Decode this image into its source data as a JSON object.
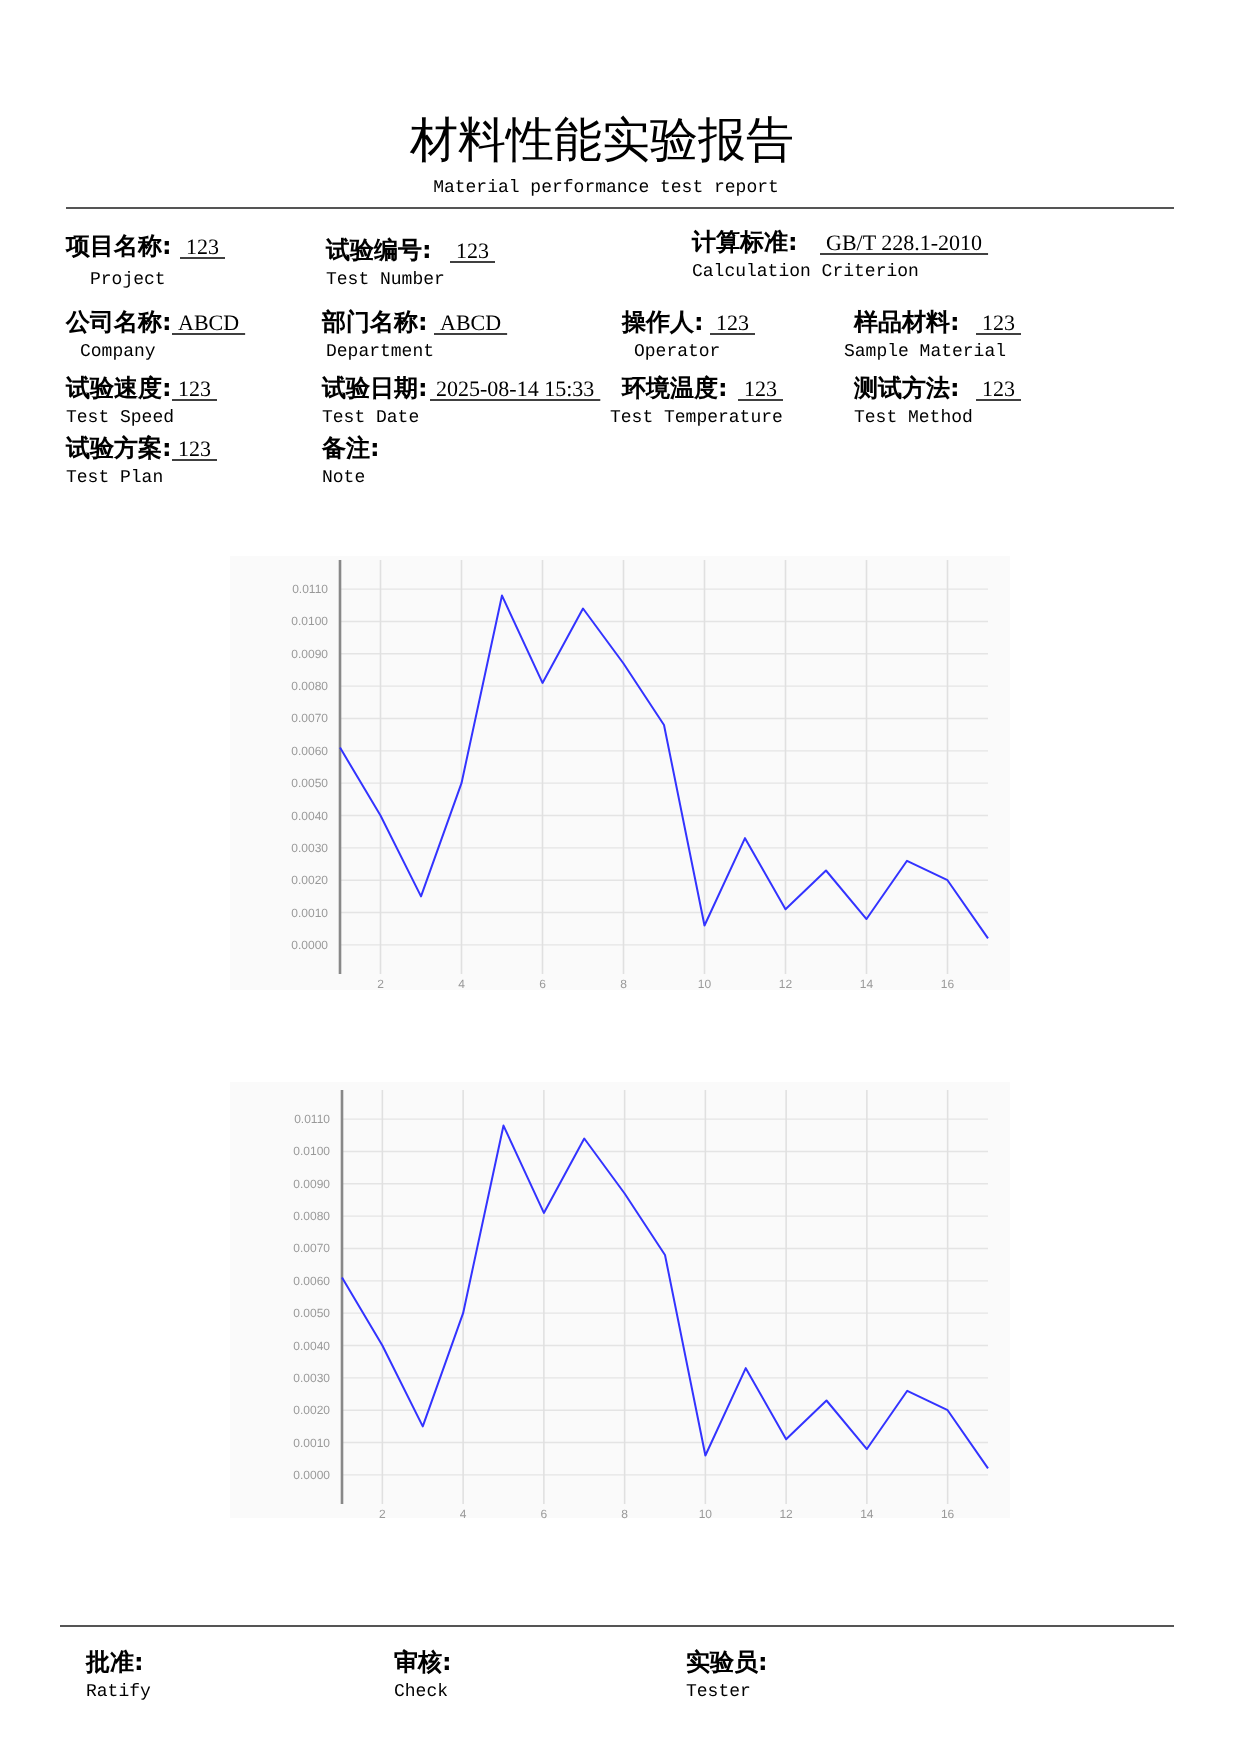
{
  "chart_data": [
    {
      "type": "other",
      "title": "材料性能实验报告",
      "subtitle": "Material performance test report",
      "annotations": [
        "项目名称:",
        "123",
        "Project",
        "试验编号:",
        "123",
        "Test Number",
        "计算标准:",
        "GB/T 228.1-2010",
        "Calculation Criterion",
        "公司名称:",
        "ABCD",
        "Company",
        "部门名称:",
        "ABCD",
        "Department",
        "操作人:",
        "123",
        "Operator",
        "样品材料:",
        "123",
        "Sample Material",
        "试验速度:",
        "123",
        "Test Speed",
        "试验日期:",
        "2025-08-14 15:33",
        "Test Date",
        "环境温度:",
        "123",
        "Test Temperature",
        "测试方法:",
        "123",
        "Test Method",
        "试验方案:",
        "123",
        "Test Plan",
        "备注:",
        "Note"
      ]
    },
    {
      "type": "line",
      "x": [
        1,
        2,
        3,
        4,
        5,
        6,
        7,
        8,
        9,
        10,
        11,
        12,
        13,
        14,
        15,
        16,
        17
      ],
      "series": [
        {
          "color": "#3333ff",
          "values": [
            0.0061,
            0.004,
            0.0015,
            0.005,
            0.0108,
            0.0081,
            0.0104,
            0.0087,
            0.0068,
            0.0006,
            0.0033,
            0.0011,
            0.0023,
            0.0008,
            0.0026,
            0.002,
            0.0002
          ]
        }
      ],
      "xlim": [
        1,
        17
      ],
      "xticks": [
        2,
        4,
        6,
        8,
        10,
        12,
        14,
        16
      ],
      "ylim": [
        -0.0009,
        0.0119
      ],
      "yticks": [
        {
          "value": 0,
          "label": "0.0000"
        },
        {
          "value": 0.001,
          "label": "0.0010"
        },
        {
          "value": 0.002,
          "label": "0.0020"
        },
        {
          "value": 0.003,
          "label": "0.0030"
        },
        {
          "value": 0.004,
          "label": "0.0040"
        },
        {
          "value": 0.005,
          "label": "0.0050"
        },
        {
          "value": 0.006,
          "label": "0.0060"
        },
        {
          "value": 0.007,
          "label": "0.0070"
        },
        {
          "value": 0.008,
          "label": "0.0080"
        },
        {
          "value": 0.009,
          "label": "0.0090"
        },
        {
          "value": 0.01,
          "label": "0.0100"
        },
        {
          "value": 0.011,
          "label": "0.0110"
        }
      ],
      "grid": true,
      "marker": "none",
      "line_style": "solid"
    },
    {
      "type": "line",
      "x": [
        1,
        2,
        3,
        4,
        5,
        6,
        7,
        8,
        9,
        10,
        11,
        12,
        13,
        14,
        15,
        16,
        17
      ],
      "series": [
        {
          "color": "#3333ff",
          "values": [
            0.0061,
            0.004,
            0.0015,
            0.005,
            0.0108,
            0.0081,
            0.0104,
            0.0087,
            0.0068,
            0.0006,
            0.0033,
            0.0011,
            0.0023,
            0.0008,
            0.0026,
            0.002,
            0.0002
          ]
        }
      ],
      "xlim": [
        1,
        17
      ],
      "xticks": [
        2,
        4,
        6,
        8,
        10,
        12,
        14,
        16
      ],
      "ylim": [
        -0.0009,
        0.0119
      ],
      "yticks": [
        {
          "value": 0,
          "label": "0.0000"
        },
        {
          "value": 0.001,
          "label": "0.0010"
        },
        {
          "value": 0.002,
          "label": "0.0020"
        },
        {
          "value": 0.003,
          "label": "0.0030"
        },
        {
          "value": 0.004,
          "label": "0.0040"
        },
        {
          "value": 0.005,
          "label": "0.0050"
        },
        {
          "value": 0.006,
          "label": "0.0060"
        },
        {
          "value": 0.007,
          "label": "0.0070"
        },
        {
          "value": 0.008,
          "label": "0.0080"
        },
        {
          "value": 0.009,
          "label": "0.0090"
        },
        {
          "value": 0.01,
          "label": "0.0100"
        },
        {
          "value": 0.011,
          "label": "0.0110"
        }
      ],
      "grid": true,
      "marker": "none",
      "line_style": "solid"
    },
    {
      "type": "other",
      "annotations": [
        "批准:",
        "Ratify",
        "审核:",
        "Check",
        "实验员:",
        "Tester"
      ]
    }
  ]
}
